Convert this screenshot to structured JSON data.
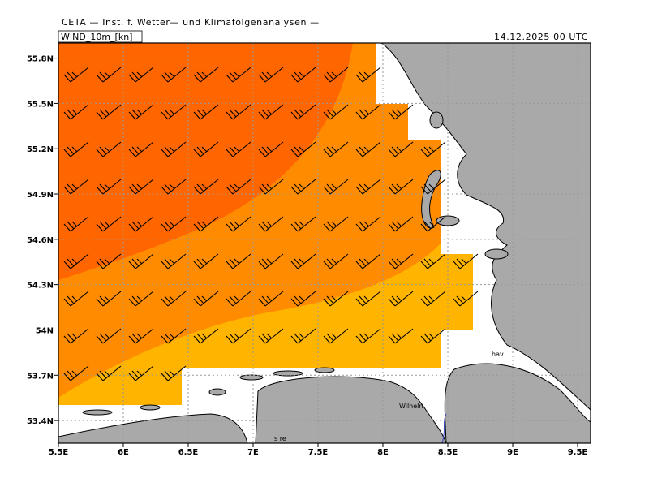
{
  "header": {
    "title": "CETA — Inst. f. Wetter— und Klimafolgenanalysen —",
    "variable": "WIND_10m_[kn]",
    "valid_time": "14.12.2025 00 UTC"
  },
  "map": {
    "xlim": [
      5.5,
      9.6
    ],
    "ylim": [
      53.25,
      55.9
    ],
    "xticks": [
      {
        "value": 5.5,
        "label": "5.5E"
      },
      {
        "value": 6,
        "label": "6E"
      },
      {
        "value": 6.5,
        "label": "6.5E"
      },
      {
        "value": 7,
        "label": "7E"
      },
      {
        "value": 7.5,
        "label": "7.5E"
      },
      {
        "value": 8,
        "label": "8E"
      },
      {
        "value": 8.5,
        "label": "8.5E"
      },
      {
        "value": 9,
        "label": "9E"
      },
      {
        "value": 9.5,
        "label": "9.5E"
      }
    ],
    "yticks": [
      {
        "value": 55.8,
        "label": "55.8N"
      },
      {
        "value": 55.5,
        "label": "55.5N"
      },
      {
        "value": 55.2,
        "label": "55.2N"
      },
      {
        "value": 54.9,
        "label": "54.9N"
      },
      {
        "value": 54.6,
        "label": "54.6N"
      },
      {
        "value": 54.3,
        "label": "54.3N"
      },
      {
        "value": 54,
        "label": "54N"
      },
      {
        "value": 53.7,
        "label": "53.7N"
      },
      {
        "value": 53.4,
        "label": "53.4N"
      }
    ],
    "grid": true,
    "place_labels": [
      "Wilheln",
      "hav",
      "s re"
    ]
  }
}
